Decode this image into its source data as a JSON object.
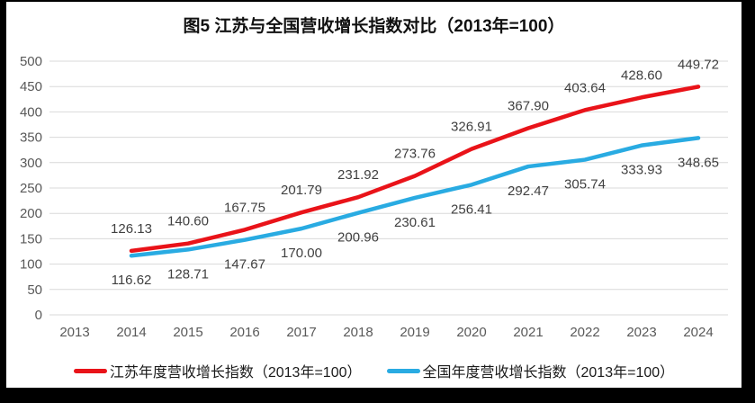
{
  "chart_data": {
    "type": "line",
    "title": "图5  江苏与全国营收增长指数对比（2013年=100）",
    "categories": [
      "2013",
      "2014",
      "2015",
      "2016",
      "2017",
      "2018",
      "2019",
      "2020",
      "2021",
      "2022",
      "2023",
      "2024"
    ],
    "y_ticks": [
      "0",
      "50",
      "100",
      "150",
      "200",
      "250",
      "300",
      "350",
      "400",
      "450",
      "500"
    ],
    "ylim": [
      0,
      500
    ],
    "grid": "horizontal",
    "legend_position": "bottom",
    "series": [
      {
        "name": "江苏年度营收增长指数（2013年=100）",
        "color": "#e91319",
        "label_side": "above",
        "values": [
          null,
          "126.13",
          "140.60",
          "167.75",
          "201.79",
          "231.92",
          "273.76",
          "326.91",
          "367.90",
          "403.64",
          "428.60",
          "449.72"
        ]
      },
      {
        "name": "全国年度营收增长指数（2013年=100）",
        "color": "#29abe2",
        "label_side": "below",
        "values": [
          null,
          "116.62",
          "128.71",
          "147.67",
          "170.00",
          "200.96",
          "230.61",
          "256.41",
          "292.47",
          "305.74",
          "333.93",
          "348.65"
        ]
      }
    ]
  },
  "colors": {
    "grid": "#d9d9d9",
    "axis_text": "#595959",
    "value_text": "#404040",
    "panel_background": "#ffffff",
    "frame": "#000000"
  }
}
